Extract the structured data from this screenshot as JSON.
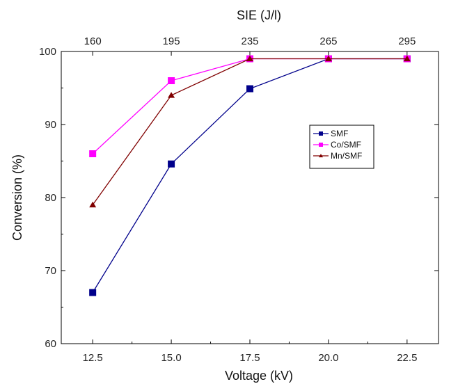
{
  "chart_data": {
    "type": "line",
    "x": [
      12.5,
      15.0,
      17.5,
      20.0,
      22.5
    ],
    "x_tick_labels": [
      "12.5",
      "15.0",
      "17.5",
      "20.0",
      "22.5"
    ],
    "xlim": [
      11.5,
      23.5
    ],
    "xlabel": "Voltage (kV)",
    "x2label": "SIE (J/l)",
    "x2_tick_labels": [
      "160",
      "195",
      "235",
      "265",
      "295"
    ],
    "ylabel": "Conversion (%)",
    "ylim": [
      60,
      100
    ],
    "y_ticks": [
      60,
      70,
      80,
      90,
      100
    ],
    "y_tick_labels": [
      "60",
      "70",
      "80",
      "90",
      "100"
    ],
    "grid": false,
    "legend_position": "center-right",
    "series": [
      {
        "name": "SMF",
        "color": "#00008B",
        "marker": "square",
        "values": [
          67.0,
          84.6,
          94.9,
          99.0,
          99.0
        ]
      },
      {
        "name": "Co/SMF",
        "color": "#FF00FF",
        "marker": "square",
        "values": [
          86.0,
          96.0,
          99.0,
          99.0,
          99.0
        ]
      },
      {
        "name": "Mn/SMF",
        "color": "#800000",
        "marker": "triangle",
        "values": [
          79.0,
          94.0,
          99.0,
          99.0,
          99.0
        ]
      }
    ]
  }
}
